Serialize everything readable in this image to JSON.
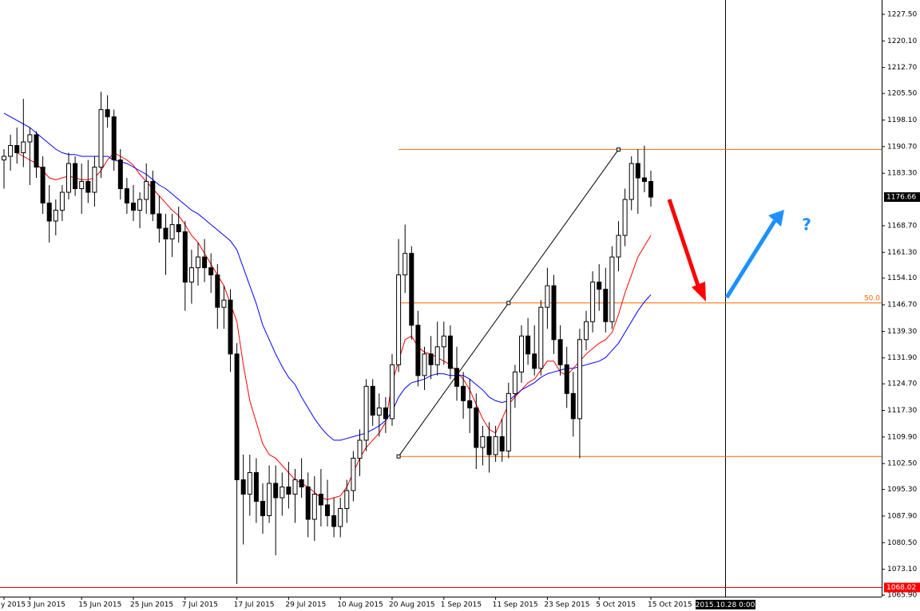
{
  "chart_data": {
    "type": "candlestick",
    "categories": [
      "y 2015",
      null,
      null,
      null,
      "3 Jun 2015",
      null,
      null,
      null,
      null,
      null,
      null,
      null,
      "15 Jun 2015",
      null,
      null,
      null,
      null,
      null,
      null,
      null,
      "25 Jun 2015",
      null,
      null,
      null,
      null,
      null,
      null,
      null,
      "7 Jul 2015",
      null,
      null,
      null,
      null,
      null,
      null,
      null,
      "17 Jul 2015",
      null,
      null,
      null,
      null,
      null,
      null,
      null,
      "29 Jul 2015",
      null,
      null,
      null,
      null,
      null,
      null,
      null,
      "10 Aug 2015",
      null,
      null,
      null,
      null,
      null,
      null,
      null,
      "20 Aug 2015",
      null,
      null,
      null,
      null,
      null,
      null,
      null,
      "1 Sep 2015",
      null,
      null,
      null,
      null,
      null,
      null,
      null,
      "11 Sep 2015",
      null,
      null,
      null,
      null,
      null,
      null,
      null,
      "23 Sep 2015",
      null,
      null,
      null,
      null,
      null,
      null,
      null,
      "5 Oct 2015",
      null,
      null,
      null,
      null,
      null,
      null,
      null,
      "15 Oct 2015"
    ],
    "open": [
      1187,
      1188,
      1191,
      1189,
      1192,
      1194,
      1185,
      1175,
      1170,
      1173,
      1178,
      1186,
      1179,
      1181,
      1178,
      1185,
      1201,
      1199,
      1187,
      1179,
      1175,
      1173,
      1176,
      1181,
      1172,
      1168,
      1165,
      1169,
      1167,
      1153,
      1157,
      1160,
      1157,
      1155,
      1146,
      1148,
      1133,
      1098,
      1094,
      1100,
      1092,
      1088,
      1097,
      1093,
      1096,
      1094,
      1098,
      1096,
      1087,
      1094,
      1091,
      1088,
      1085,
      1090,
      1095,
      1104,
      1109,
      1124,
      1116,
      1118,
      1115,
      1130,
      1155,
      1161,
      1141,
      1127,
      1133,
      1130,
      1135,
      1138,
      1129,
      1124,
      1120,
      1118,
      1107,
      1110,
      1105,
      1110,
      1106,
      1122,
      1128,
      1138,
      1133,
      1129,
      1146,
      1152,
      1137,
      1130,
      1122,
      1115,
      1137,
      1142,
      1153,
      1151,
      1142,
      1160,
      1166,
      1176,
      1186,
      1182,
      1181
    ],
    "high": [
      1190,
      1194,
      1196,
      1204,
      1196,
      1195,
      1188,
      1180,
      1176,
      1180,
      1189,
      1188,
      1186,
      1187,
      1188,
      1206,
      1205,
      1201,
      1190,
      1182,
      1180,
      1178,
      1186,
      1184,
      1177,
      1172,
      1172,
      1174,
      1170,
      1162,
      1164,
      1165,
      1161,
      1158,
      1152,
      1151,
      1136,
      1105,
      1105,
      1104,
      1097,
      1102,
      1102,
      1100,
      1103,
      1101,
      1104,
      1100,
      1099,
      1101,
      1098,
      1093,
      1093,
      1098,
      1106,
      1112,
      1126,
      1126,
      1122,
      1121,
      1133,
      1165,
      1169,
      1163,
      1145,
      1135,
      1138,
      1142,
      1142,
      1141,
      1135,
      1128,
      1126,
      1122,
      1113,
      1114,
      1113,
      1115,
      1125,
      1130,
      1141,
      1143,
      1141,
      1148,
      1157,
      1155,
      1141,
      1135,
      1128,
      1140,
      1145,
      1156,
      1158,
      1157,
      1163,
      1170,
      1179,
      1188,
      1190,
      1191,
      1184
    ],
    "low": [
      1179,
      1184,
      1186,
      1185,
      1180,
      1182,
      1172,
      1164,
      1166,
      1170,
      1176,
      1177,
      1172,
      1175,
      1174,
      1182,
      1196,
      1184,
      1176,
      1172,
      1170,
      1168,
      1172,
      1170,
      1164,
      1155,
      1160,
      1164,
      1145,
      1147,
      1152,
      1153,
      1150,
      1140,
      1140,
      1128,
      1069,
      1080,
      1088,
      1086,
      1083,
      1086,
      1077,
      1088,
      1090,
      1086,
      1093,
      1082,
      1081,
      1085,
      1085,
      1082,
      1082,
      1086,
      1092,
      1099,
      1106,
      1113,
      1110,
      1111,
      1113,
      1128,
      1150,
      1137,
      1124,
      1123,
      1126,
      1127,
      1130,
      1126,
      1120,
      1115,
      1111,
      1101,
      1102,
      1100,
      1103,
      1103,
      1104,
      1118,
      1125,
      1130,
      1127,
      1127,
      1140,
      1133,
      1127,
      1118,
      1110,
      1104,
      1134,
      1139,
      1145,
      1139,
      1140,
      1156,
      1163,
      1173,
      1172,
      1178,
      1174
    ],
    "close": [
      1188,
      1191,
      1189,
      1192,
      1194,
      1185,
      1175,
      1170,
      1173,
      1178,
      1186,
      1179,
      1181,
      1178,
      1185,
      1201,
      1199,
      1187,
      1179,
      1175,
      1173,
      1176,
      1181,
      1172,
      1168,
      1165,
      1169,
      1167,
      1153,
      1157,
      1160,
      1157,
      1155,
      1146,
      1148,
      1133,
      1098,
      1094,
      1100,
      1092,
      1088,
      1097,
      1093,
      1096,
      1094,
      1098,
      1096,
      1087,
      1094,
      1091,
      1088,
      1085,
      1090,
      1095,
      1104,
      1109,
      1124,
      1116,
      1118,
      1115,
      1130,
      1155,
      1161,
      1141,
      1127,
      1133,
      1130,
      1135,
      1138,
      1129,
      1124,
      1120,
      1118,
      1107,
      1110,
      1105,
      1110,
      1106,
      1122,
      1128,
      1138,
      1133,
      1129,
      1146,
      1152,
      1137,
      1130,
      1122,
      1115,
      1137,
      1142,
      1153,
      1151,
      1142,
      1160,
      1166,
      1176,
      1186,
      1182,
      1181,
      1176.66
    ],
    "up_color": "#ffffff",
    "down_color": "#000000",
    "overlays": [
      {
        "color": "#ff0000",
        "values": [
          null,
          null,
          1189,
          1188,
          1187,
          1186,
          1184,
          1182,
          1181.5,
          1182,
          1182.5,
          1182,
          1181.5,
          1181.5,
          1182,
          1184,
          1187,
          1189,
          1188,
          1187,
          1185.5,
          1183,
          1181,
          1179,
          1177,
          1175,
          1173,
          1171.5,
          1169,
          1166,
          1164,
          1161,
          1158,
          1155,
          1152,
          1147,
          1142,
          1130,
          1120,
          1114,
          1108,
          1105,
          1104,
          1102,
          1100,
          1098,
          1097,
          1096,
          1094.5,
          1093,
          1092.5,
          1093,
          1093.5,
          1096,
          1100,
          1104,
          1107,
          1109,
          1111,
          1114,
          1125,
          1131,
          1137,
          1138,
          1135,
          1133.5,
          1133,
          1132,
          1131,
          1130,
          1128,
          1126,
          1123,
          1119,
          1115,
          1112,
          1111,
          1115,
          1119,
          1121,
          1123,
          1125,
          1126,
          1128.5,
          1131,
          1131,
          1128,
          1127,
          1129,
          1131,
          1133,
          1134.5,
          1136,
          1137,
          1139,
          1144,
          1150,
          1155,
          1160,
          1163,
          1166
        ]
      },
      {
        "color": "#0000ff",
        "values": [
          1200,
          1199,
          1198,
          1197,
          1196,
          1194.5,
          1193,
          1191.5,
          1190,
          1189,
          1188.5,
          1188.5,
          1188,
          1188,
          1188,
          1188,
          1188,
          1187,
          1186.5,
          1186,
          1185,
          1184,
          1183,
          1181.5,
          1180,
          1179,
          1177.5,
          1176,
          1174.5,
          1173,
          1172,
          1170.5,
          1169,
          1167.5,
          1166,
          1164.5,
          1162,
          1157,
          1152,
          1147,
          1141,
          1137,
          1133,
          1129.5,
          1126.5,
          1124.5,
          1121,
          1118,
          1115,
          1112.5,
          1110.5,
          1109,
          1109,
          1109.5,
          1110,
          1110.5,
          1111,
          1112,
          1113,
          1114.5,
          1117,
          1121,
          1123.5,
          1125,
          1125.5,
          1126,
          1127,
          1127.5,
          1127.5,
          1127,
          1127,
          1127,
          1126,
          1124.5,
          1123,
          1121,
          1120,
          1119.5,
          1120,
          1121.5,
          1123,
          1124,
          1125,
          1126.5,
          1127.5,
          1128,
          1128.5,
          1129,
          1129,
          1129.5,
          1130,
          1130.5,
          1131,
          1132,
          1134,
          1136,
          1139,
          1142,
          1145,
          1147.5,
          1149.5
        ]
      }
    ],
    "fibo": {
      "high": 1189.9,
      "low": 1104.5,
      "label": "50.0",
      "color": "#ff6600"
    },
    "support": {
      "value": 1068.02,
      "color": "#ff0000"
    },
    "last_price": 1176.66,
    "cursor_time": "2015.10.28 0:00",
    "annotation": "?",
    "ylim": [
      1065.7,
      1231.5
    ],
    "yticks": [
      {
        "value": 1227.5,
        "label": "1227.50"
      },
      {
        "value": 1220.1,
        "label": "1220.10"
      },
      {
        "value": 1212.7,
        "label": "1212.70"
      },
      {
        "value": 1205.5,
        "label": "1205.50"
      },
      {
        "value": 1198.1,
        "label": "1198.10"
      },
      {
        "value": 1190.7,
        "label": "1190.70"
      },
      {
        "value": 1183.3,
        "label": "1183.30"
      },
      {
        "value": 1168.7,
        "label": "1168.70"
      },
      {
        "value": 1161.3,
        "label": "1161.30"
      },
      {
        "value": 1154.1,
        "label": "1154.10"
      },
      {
        "value": 1146.7,
        "label": "1146.70"
      },
      {
        "value": 1139.3,
        "label": "1139.30"
      },
      {
        "value": 1131.9,
        "label": "1131.90"
      },
      {
        "value": 1124.7,
        "label": "1124.70"
      },
      {
        "value": 1117.3,
        "label": "1117.30"
      },
      {
        "value": 1109.9,
        "label": "1109.90"
      },
      {
        "value": 1102.5,
        "label": "1102.50"
      },
      {
        "value": 1095.3,
        "label": "1095.30"
      },
      {
        "value": 1087.9,
        "label": "1087.90"
      },
      {
        "value": 1080.5,
        "label": "1080.50"
      },
      {
        "value": 1073.1,
        "label": "1073.10"
      },
      {
        "value": 1065.9,
        "label": "1065.90"
      }
    ]
  }
}
